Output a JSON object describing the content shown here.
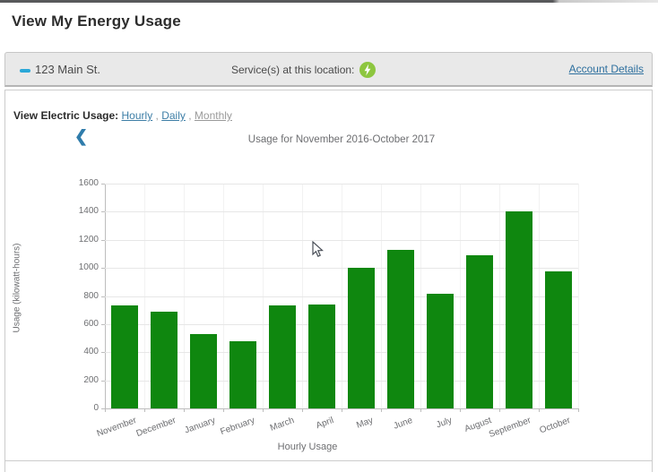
{
  "page": {
    "title": "View My Energy Usage"
  },
  "location_bar": {
    "collapse_icon": "minus-icon",
    "address": "123 Main St.",
    "services_label": "Service(s) at this location:",
    "service_icon": "electric-bolt-icon",
    "service_icon_color": "#8dc63f",
    "account_details_label": "Account Details"
  },
  "usage_nav": {
    "label": "View Electric Usage:",
    "separator": " , ",
    "links": [
      {
        "label": "Hourly",
        "muted": false
      },
      {
        "label": "Daily",
        "muted": false
      },
      {
        "label": "Monthly",
        "muted": true
      }
    ]
  },
  "chart": {
    "prev_arrow": "❮"
  },
  "chart_data": {
    "type": "bar",
    "title": "Usage for November 2016-October 2017",
    "categories": [
      "November",
      "December",
      "January",
      "February",
      "March",
      "April",
      "May",
      "June",
      "July",
      "August",
      "September",
      "October"
    ],
    "values": [
      730,
      690,
      530,
      480,
      735,
      740,
      1000,
      1130,
      815,
      1090,
      1400,
      975
    ],
    "xlabel": "Hourly Usage",
    "ylabel": "Usage (kilowatt-hours)",
    "ylim": [
      0,
      1600
    ],
    "ytick_step": 200,
    "bar_color": "#0f870f",
    "grid": true,
    "legend": "none"
  },
  "colors": {
    "accent_blue": "#2ba8d8",
    "link_blue": "#3d7ea6",
    "bar_green": "#0f870f",
    "icon_green": "#8dc63f",
    "text_gray": "#6d6e71"
  }
}
